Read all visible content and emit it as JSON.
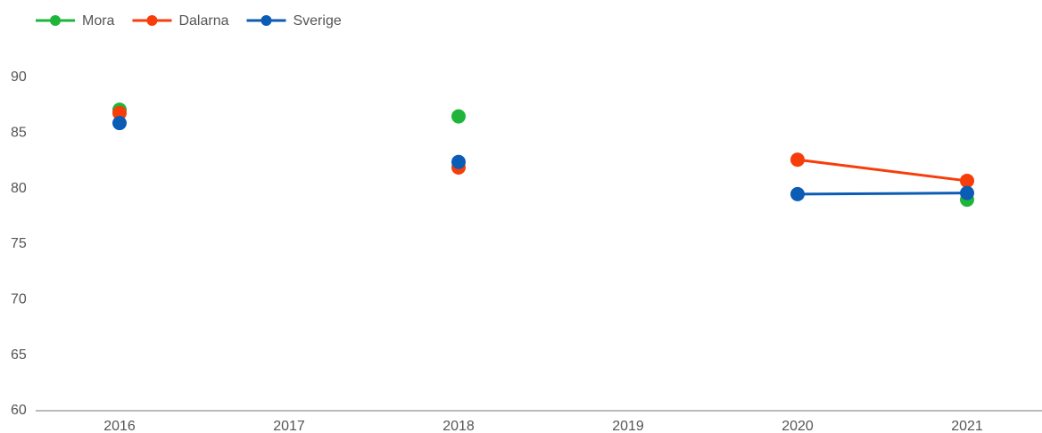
{
  "chart_data": {
    "type": "line",
    "categories": [
      "2016",
      "2017",
      "2018",
      "2019",
      "2020",
      "2021"
    ],
    "series": [
      {
        "name": "Mora",
        "color": "#1fb53b",
        "values": [
          87.1,
          null,
          86.5,
          null,
          null,
          79.0
        ]
      },
      {
        "name": "Dalarna",
        "color": "#f73e0a",
        "values": [
          86.8,
          null,
          81.9,
          null,
          82.6,
          80.7
        ]
      },
      {
        "name": "Sverige",
        "color": "#0b5cb5",
        "values": [
          85.9,
          null,
          82.4,
          null,
          79.5,
          79.6
        ]
      }
    ],
    "ylim": [
      60,
      90
    ],
    "yticks": [
      60,
      65,
      70,
      75,
      80,
      85,
      90
    ],
    "grid": false,
    "legend": "top-left"
  }
}
